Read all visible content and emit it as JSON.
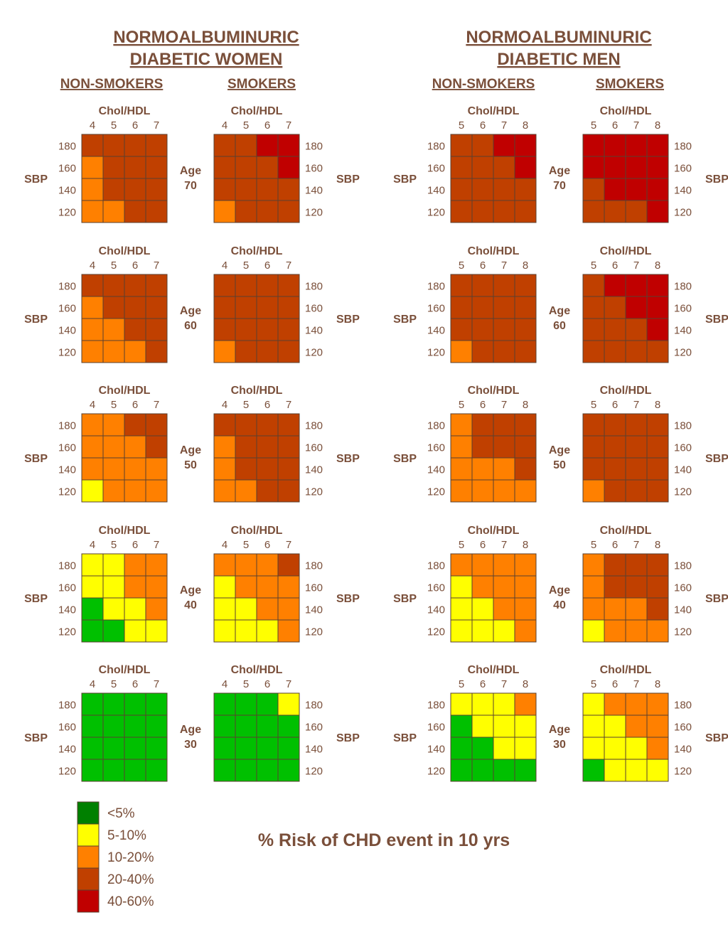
{
  "chart_data": {
    "type": "heatmap",
    "title": "% Risk of CHD event in 10 yrs",
    "row_label": "SBP",
    "column_label": "Chol/HDL",
    "sbp_values": [
      180,
      160,
      140,
      120
    ],
    "age_prefix": "Age",
    "legend": [
      {
        "level": 1,
        "label": "<5%",
        "color": "#008000"
      },
      {
        "level": 2,
        "label": "5-10%",
        "color": "#ffff00"
      },
      {
        "level": 3,
        "label": "10-20%",
        "color": "#ff8000"
      },
      {
        "level": 4,
        "label": "20-40%",
        "color": "#c04000"
      },
      {
        "level": 5,
        "label": "40-60%",
        "color": "#c00000"
      }
    ],
    "cell_colors": {
      "1": "#00c000",
      "2": "#ffff00",
      "3": "#ff8000",
      "4": "#c04000",
      "5": "#c00000"
    },
    "panels": [
      {
        "group": "NORMOALBUMINURIC DIABETIC WOMEN",
        "group_lines": [
          "NORMOALBUMINURIC",
          "DIABETIC WOMEN"
        ],
        "subgroups": [
          {
            "name": "NON-SMOKERS",
            "chol_values": [
              4,
              5,
              6,
              7
            ],
            "grids": [
              {
                "age": 70,
                "rows": [
                  [
                    4,
                    4,
                    4,
                    4
                  ],
                  [
                    3,
                    4,
                    4,
                    4
                  ],
                  [
                    3,
                    4,
                    4,
                    4
                  ],
                  [
                    3,
                    3,
                    4,
                    4
                  ]
                ]
              },
              {
                "age": 60,
                "rows": [
                  [
                    4,
                    4,
                    4,
                    4
                  ],
                  [
                    3,
                    4,
                    4,
                    4
                  ],
                  [
                    3,
                    3,
                    4,
                    4
                  ],
                  [
                    3,
                    3,
                    3,
                    4
                  ]
                ]
              },
              {
                "age": 50,
                "rows": [
                  [
                    3,
                    3,
                    4,
                    4
                  ],
                  [
                    3,
                    3,
                    3,
                    4
                  ],
                  [
                    3,
                    3,
                    3,
                    3
                  ],
                  [
                    2,
                    3,
                    3,
                    3
                  ]
                ]
              },
              {
                "age": 40,
                "rows": [
                  [
                    2,
                    2,
                    3,
                    3
                  ],
                  [
                    2,
                    2,
                    3,
                    3
                  ],
                  [
                    1,
                    2,
                    2,
                    3
                  ],
                  [
                    1,
                    1,
                    2,
                    2
                  ]
                ]
              },
              {
                "age": 30,
                "rows": [
                  [
                    1,
                    1,
                    1,
                    1
                  ],
                  [
                    1,
                    1,
                    1,
                    1
                  ],
                  [
                    1,
                    1,
                    1,
                    1
                  ],
                  [
                    1,
                    1,
                    1,
                    1
                  ]
                ]
              }
            ]
          },
          {
            "name": "SMOKERS",
            "chol_values": [
              4,
              5,
              6,
              7
            ],
            "grids": [
              {
                "age": 70,
                "rows": [
                  [
                    4,
                    4,
                    5,
                    5
                  ],
                  [
                    4,
                    4,
                    4,
                    5
                  ],
                  [
                    4,
                    4,
                    4,
                    4
                  ],
                  [
                    3,
                    4,
                    4,
                    4
                  ]
                ]
              },
              {
                "age": 60,
                "rows": [
                  [
                    4,
                    4,
                    4,
                    4
                  ],
                  [
                    4,
                    4,
                    4,
                    4
                  ],
                  [
                    4,
                    4,
                    4,
                    4
                  ],
                  [
                    3,
                    4,
                    4,
                    4
                  ]
                ]
              },
              {
                "age": 50,
                "rows": [
                  [
                    4,
                    4,
                    4,
                    4
                  ],
                  [
                    3,
                    4,
                    4,
                    4
                  ],
                  [
                    3,
                    4,
                    4,
                    4
                  ],
                  [
                    3,
                    3,
                    4,
                    4
                  ]
                ]
              },
              {
                "age": 40,
                "rows": [
                  [
                    3,
                    3,
                    3,
                    4
                  ],
                  [
                    2,
                    3,
                    3,
                    3
                  ],
                  [
                    2,
                    2,
                    3,
                    3
                  ],
                  [
                    2,
                    2,
                    2,
                    3
                  ]
                ]
              },
              {
                "age": 30,
                "rows": [
                  [
                    1,
                    1,
                    1,
                    2
                  ],
                  [
                    1,
                    1,
                    1,
                    1
                  ],
                  [
                    1,
                    1,
                    1,
                    1
                  ],
                  [
                    1,
                    1,
                    1,
                    1
                  ]
                ]
              }
            ]
          }
        ]
      },
      {
        "group": "NORMOALBUMINURIC DIABETIC MEN",
        "group_lines": [
          "NORMOALBUMINURIC",
          "DIABETIC MEN"
        ],
        "subgroups": [
          {
            "name": "NON-SMOKERS",
            "chol_values": [
              5,
              6,
              7,
              8
            ],
            "grids": [
              {
                "age": 70,
                "rows": [
                  [
                    4,
                    4,
                    5,
                    5
                  ],
                  [
                    4,
                    4,
                    4,
                    5
                  ],
                  [
                    4,
                    4,
                    4,
                    4
                  ],
                  [
                    4,
                    4,
                    4,
                    4
                  ]
                ]
              },
              {
                "age": 60,
                "rows": [
                  [
                    4,
                    4,
                    4,
                    4
                  ],
                  [
                    4,
                    4,
                    4,
                    4
                  ],
                  [
                    4,
                    4,
                    4,
                    4
                  ],
                  [
                    3,
                    4,
                    4,
                    4
                  ]
                ]
              },
              {
                "age": 50,
                "rows": [
                  [
                    3,
                    4,
                    4,
                    4
                  ],
                  [
                    3,
                    4,
                    4,
                    4
                  ],
                  [
                    3,
                    3,
                    3,
                    4
                  ],
                  [
                    3,
                    3,
                    3,
                    3
                  ]
                ]
              },
              {
                "age": 40,
                "rows": [
                  [
                    3,
                    3,
                    3,
                    3
                  ],
                  [
                    2,
                    3,
                    3,
                    3
                  ],
                  [
                    2,
                    2,
                    3,
                    3
                  ],
                  [
                    2,
                    2,
                    2,
                    3
                  ]
                ]
              },
              {
                "age": 30,
                "rows": [
                  [
                    2,
                    2,
                    2,
                    3
                  ],
                  [
                    1,
                    2,
                    2,
                    2
                  ],
                  [
                    1,
                    1,
                    2,
                    2
                  ],
                  [
                    1,
                    1,
                    1,
                    1
                  ]
                ]
              }
            ]
          },
          {
            "name": "SMOKERS",
            "chol_values": [
              5,
              6,
              7,
              8
            ],
            "grids": [
              {
                "age": 70,
                "rows": [
                  [
                    5,
                    5,
                    5,
                    5
                  ],
                  [
                    5,
                    5,
                    5,
                    5
                  ],
                  [
                    4,
                    5,
                    5,
                    5
                  ],
                  [
                    4,
                    4,
                    4,
                    5
                  ]
                ]
              },
              {
                "age": 60,
                "rows": [
                  [
                    4,
                    5,
                    5,
                    5
                  ],
                  [
                    4,
                    4,
                    5,
                    5
                  ],
                  [
                    4,
                    4,
                    4,
                    5
                  ],
                  [
                    4,
                    4,
                    4,
                    4
                  ]
                ]
              },
              {
                "age": 50,
                "rows": [
                  [
                    4,
                    4,
                    4,
                    4
                  ],
                  [
                    4,
                    4,
                    4,
                    4
                  ],
                  [
                    4,
                    4,
                    4,
                    4
                  ],
                  [
                    3,
                    4,
                    4,
                    4
                  ]
                ]
              },
              {
                "age": 40,
                "rows": [
                  [
                    3,
                    4,
                    4,
                    4
                  ],
                  [
                    3,
                    4,
                    4,
                    4
                  ],
                  [
                    3,
                    3,
                    3,
                    4
                  ],
                  [
                    2,
                    3,
                    3,
                    3
                  ]
                ]
              },
              {
                "age": 30,
                "rows": [
                  [
                    2,
                    3,
                    3,
                    3
                  ],
                  [
                    2,
                    2,
                    3,
                    3
                  ],
                  [
                    2,
                    2,
                    2,
                    3
                  ],
                  [
                    1,
                    2,
                    2,
                    2
                  ]
                ]
              }
            ]
          }
        ]
      }
    ]
  }
}
